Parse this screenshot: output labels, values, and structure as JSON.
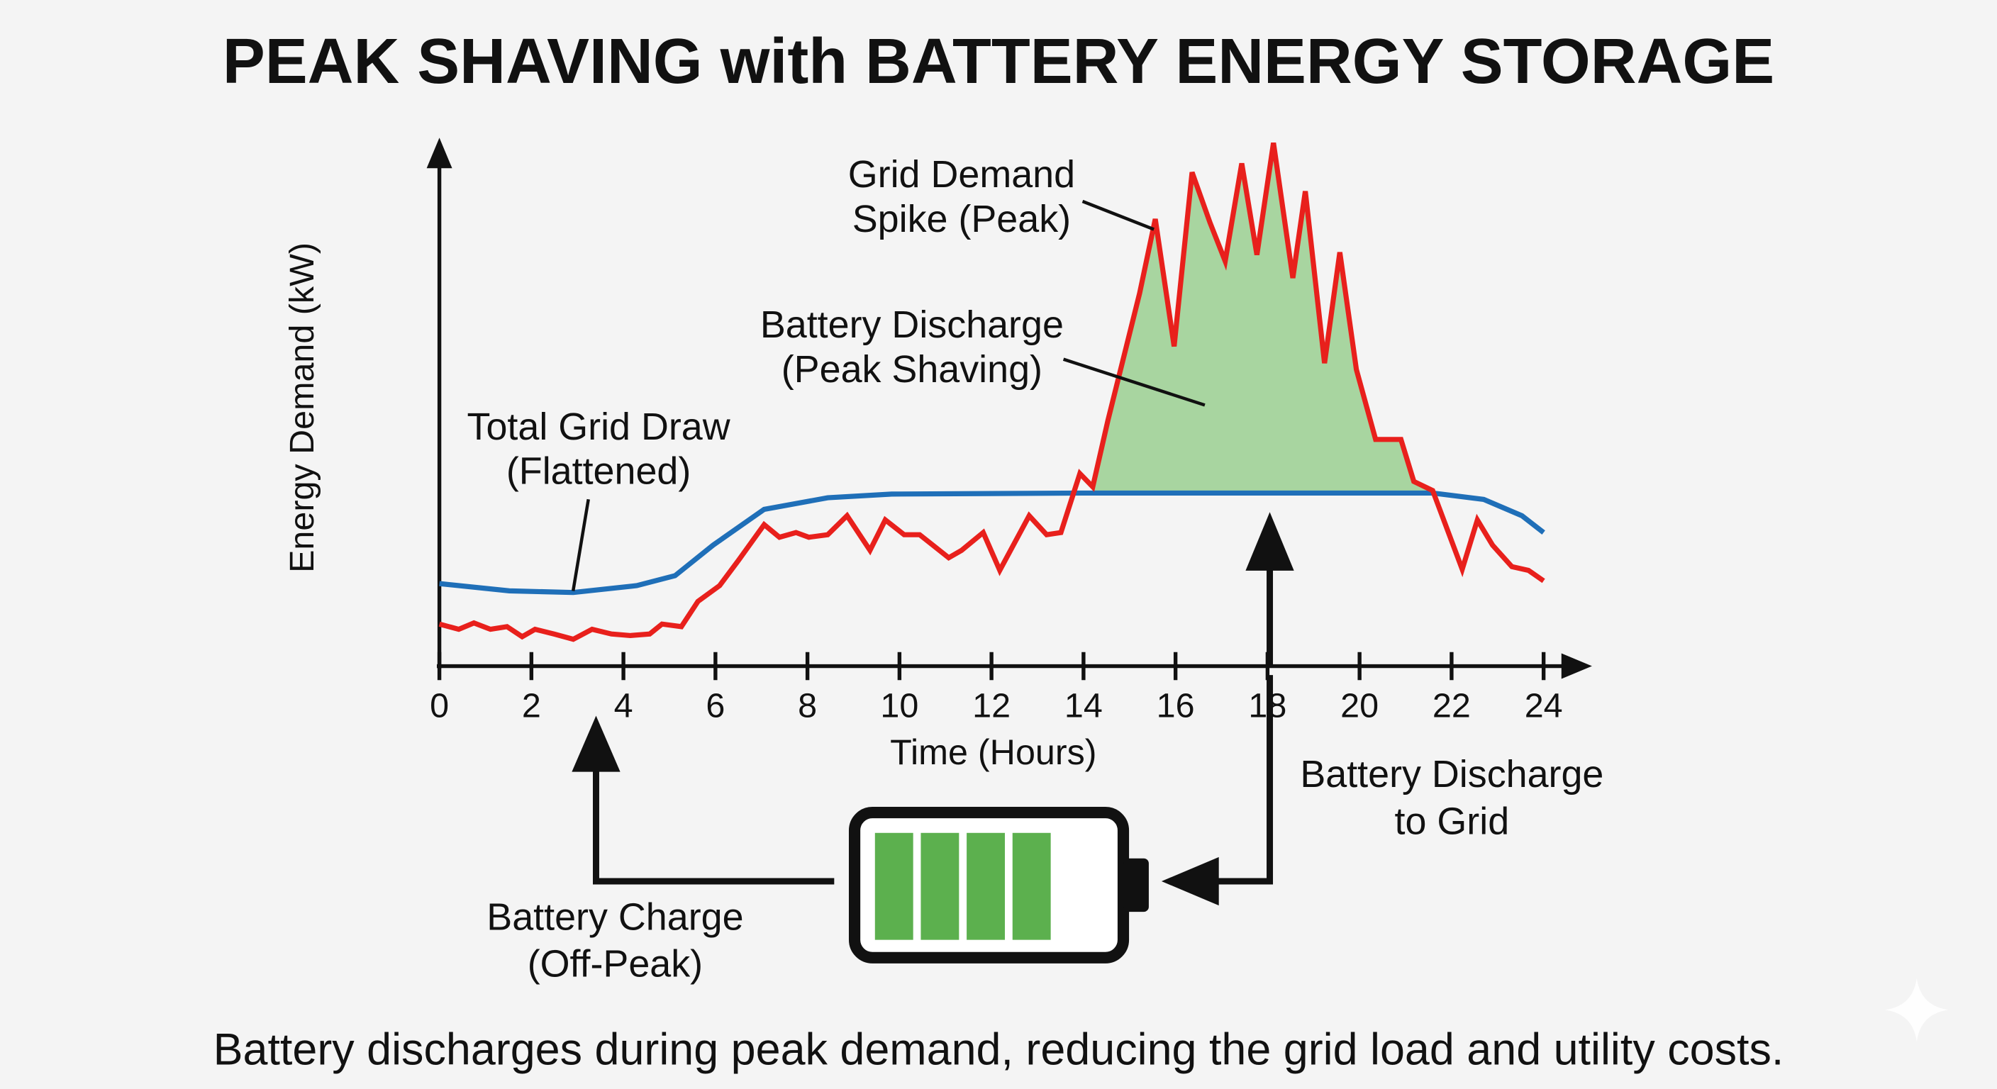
{
  "chart_data": {
    "type": "line",
    "title": "PEAK SHAVING with BATTERY ENERGY STORAGE",
    "xlabel": "Time (Hours)",
    "ylabel": "Energy Demand (kW)",
    "xlim": [
      0,
      24
    ],
    "ylim": [
      0,
      100
    ],
    "xticks": [
      "0",
      "2",
      "4",
      "6",
      "8",
      "10",
      "12",
      "14",
      "16",
      "18",
      "20",
      "22",
      "24"
    ],
    "grid": false,
    "series": [
      {
        "name": "Grid Demand",
        "color": "#e8201c",
        "x": [
          0,
          0.42,
          0.75,
          1.11,
          1.47,
          1.8,
          2.08,
          2.49,
          2.91,
          3.32,
          3.74,
          4.15,
          4.57,
          4.84,
          5.26,
          5.62,
          6.09,
          6.5,
          7.06,
          7.39,
          7.75,
          8.03,
          8.44,
          8.86,
          9.36,
          9.69,
          10.1,
          10.44,
          11.07,
          11.35,
          11.82,
          12.18,
          12.82,
          13.2,
          13.51,
          13.92,
          14.2,
          14.53,
          15.22,
          15.56,
          15.97,
          16.36,
          16.75,
          17.08,
          17.44,
          17.77,
          18.13,
          18.55,
          18.82,
          19.24,
          19.57,
          19.93,
          20.35,
          20.9,
          21.18,
          21.59,
          22.23,
          22.56,
          22.89,
          23.31,
          23.67,
          24
        ],
        "y": [
          8.0,
          7.0,
          8.2,
          7.0,
          7.5,
          5.6,
          7.0,
          6.1,
          5.1,
          7.0,
          6.1,
          5.8,
          6.1,
          8.0,
          7.5,
          12.3,
          15.3,
          20.1,
          26.9,
          24.5,
          25.4,
          24.5,
          25.0,
          28.6,
          22.0,
          27.8,
          25.0,
          25.0,
          20.6,
          22.0,
          25.4,
          18.2,
          28.6,
          25.0,
          25.4,
          36.6,
          34.1,
          46.7,
          70.9,
          85.0,
          60.8,
          93.9,
          84.3,
          77.0,
          95.6,
          78.2,
          99.5,
          73.8,
          90.3,
          57.6,
          78.7,
          56.4,
          43.1,
          43.1,
          35.1,
          33.4,
          18.4,
          27.8,
          23.0,
          18.9,
          18.2,
          16.2
        ]
      },
      {
        "name": "Total Grid Draw (Flattened)",
        "color": "#1f6fb8",
        "x": [
          0,
          1.52,
          2.91,
          4.29,
          5.12,
          5.95,
          7.06,
          8.44,
          9.83,
          14.0,
          21.59,
          22.7,
          23.53,
          24
        ],
        "y": [
          15.7,
          14.3,
          14.0,
          15.3,
          17.2,
          23.0,
          29.8,
          32.0,
          32.7,
          32.9,
          32.9,
          31.7,
          28.6,
          25.4
        ]
      }
    ],
    "shaded_region": {
      "name": "Battery Discharge (Peak Shaving)",
      "color": "#a8d5a0",
      "x_range": [
        14.2,
        21.6
      ]
    },
    "annotations": {
      "spike": [
        "Grid Demand",
        "Spike (Peak)"
      ],
      "discharge_area": [
        "Battery Discharge",
        "(Peak Shaving)"
      ],
      "flattened": [
        "Total Grid Draw",
        "(Flattened)"
      ],
      "discharge_grid": [
        "Battery Discharge",
        "to Grid"
      ],
      "charge": [
        "Battery Charge",
        "(Off-Peak)"
      ]
    },
    "battery": {
      "bars_filled": 4,
      "bars_total": 4,
      "color": "#5cb04e"
    },
    "footer": "Battery discharges during peak demand, reducing the grid load and utility costs."
  }
}
